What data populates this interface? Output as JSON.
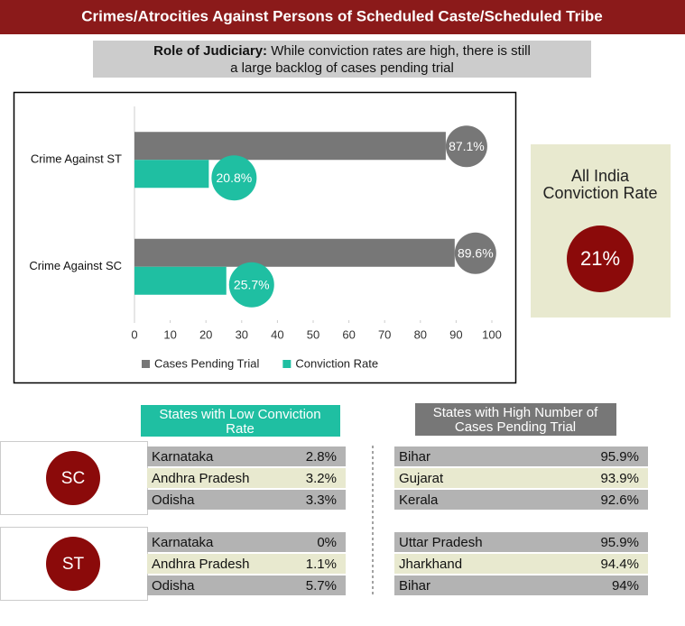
{
  "header": {
    "title": "Crimes/Atrocities Against Persons of Scheduled Caste/Scheduled Tribe"
  },
  "subtitle": {
    "lead": "Role of Judiciary:",
    "text_line1": "While conviction rates are high, there is still",
    "text_line2": "a large backlog of cases pending trial"
  },
  "chart_data": {
    "type": "bar",
    "orientation": "horizontal",
    "categories": [
      "Crime Against ST",
      "Crime Against SC"
    ],
    "series": [
      {
        "name": "Cases Pending Trial",
        "color": "#777777",
        "values": [
          87.1,
          89.6
        ],
        "value_labels": [
          "87.1%",
          "89.6%"
        ]
      },
      {
        "name": "Conviction Rate",
        "color": "#1fbfa2",
        "values": [
          20.8,
          25.7
        ],
        "value_labels": [
          "20.8%",
          "25.7%"
        ]
      }
    ],
    "xlim": [
      0,
      100
    ],
    "xticks": [
      0,
      10,
      20,
      30,
      40,
      50,
      60,
      70,
      80,
      90,
      100
    ],
    "grid": false,
    "legend": "bottom"
  },
  "all_india": {
    "label_line1": "All India",
    "label_line2": "Conviction Rate",
    "value": "21%"
  },
  "tables": {
    "low_title_line1": "States with Low Conviction",
    "low_title_line2": "Rate",
    "high_title_line1": "States with High Number of",
    "high_title_line2": "Cases Pending Trial",
    "groups": [
      {
        "label": "SC",
        "low": [
          [
            "Karnataka",
            "2.8%"
          ],
          [
            "Andhra Pradesh",
            "3.2%"
          ],
          [
            "Odisha",
            "3.3%"
          ]
        ],
        "high": [
          [
            "Bihar",
            "95.9%"
          ],
          [
            "Gujarat",
            "93.9%"
          ],
          [
            "Kerala",
            "92.6%"
          ]
        ]
      },
      {
        "label": "ST",
        "low": [
          [
            "Karnataka",
            "0%"
          ],
          [
            "Andhra Pradesh",
            "1.1%"
          ],
          [
            "Odisha",
            "5.7%"
          ]
        ],
        "high": [
          [
            "Uttar Pradesh",
            "95.9%"
          ],
          [
            "Jharkhand",
            "94.4%"
          ],
          [
            "Bihar",
            "94%"
          ]
        ]
      }
    ]
  }
}
